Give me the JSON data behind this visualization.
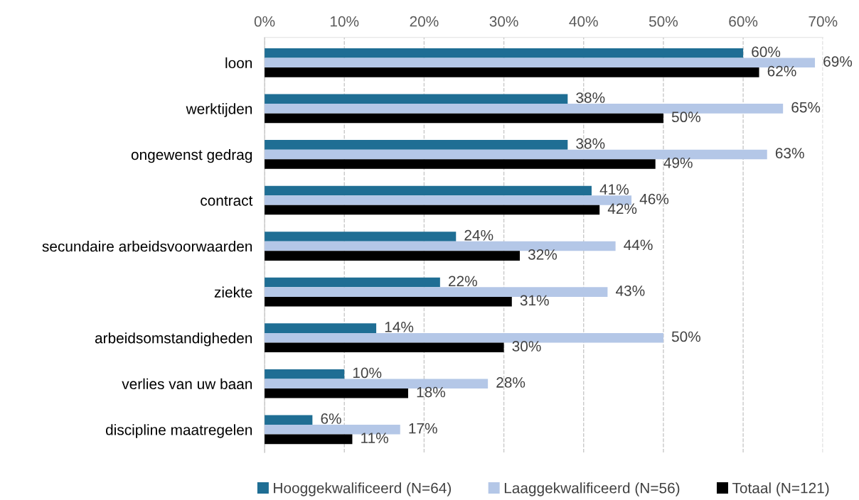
{
  "chart_data": {
    "type": "bar",
    "orientation": "horizontal",
    "categories": [
      "loon",
      "werktijden",
      "ongewenst gedrag",
      "contract",
      "secundaire arbeidsvoorwaarden",
      "ziekte",
      "arbeidsomstandigheden",
      "verlies van uw baan",
      "discipline maatregelen"
    ],
    "series": [
      {
        "name": "Hooggekwalificeerd (N=64)",
        "color": "#1f6e94",
        "values": [
          60,
          38,
          38,
          41,
          24,
          22,
          14,
          10,
          6
        ],
        "value_labels": [
          "60%",
          "38%",
          "38%",
          "41%",
          "24%",
          "22%",
          "14%",
          "10%",
          "6%"
        ]
      },
      {
        "name": "Laaggekwalificeerd (N=56)",
        "color": "#b4c7e7",
        "values": [
          69,
          65,
          63,
          46,
          44,
          43,
          50,
          28,
          17
        ],
        "value_labels": [
          "69%",
          "65%",
          "63%",
          "46%",
          "44%",
          "43%",
          "50%",
          "28%",
          "17%"
        ]
      },
      {
        "name": "Totaal (N=121)",
        "color": "#000000",
        "values": [
          62,
          50,
          49,
          42,
          32,
          31,
          30,
          18,
          11
        ],
        "value_labels": [
          "62%",
          "50%",
          "49%",
          "42%",
          "32%",
          "31%",
          "30%",
          "18%",
          "11%"
        ]
      }
    ],
    "xlim": [
      0,
      70
    ],
    "xticks": [
      {
        "value": 0,
        "label": "0%"
      },
      {
        "value": 10,
        "label": "10%"
      },
      {
        "value": 20,
        "label": "20%"
      },
      {
        "value": 30,
        "label": "30%"
      },
      {
        "value": 40,
        "label": "40%"
      },
      {
        "value": 50,
        "label": "50%"
      },
      {
        "value": 60,
        "label": "60%"
      },
      {
        "value": 70,
        "label": "70%"
      }
    ],
    "grid": "x",
    "legend": "bottom"
  }
}
